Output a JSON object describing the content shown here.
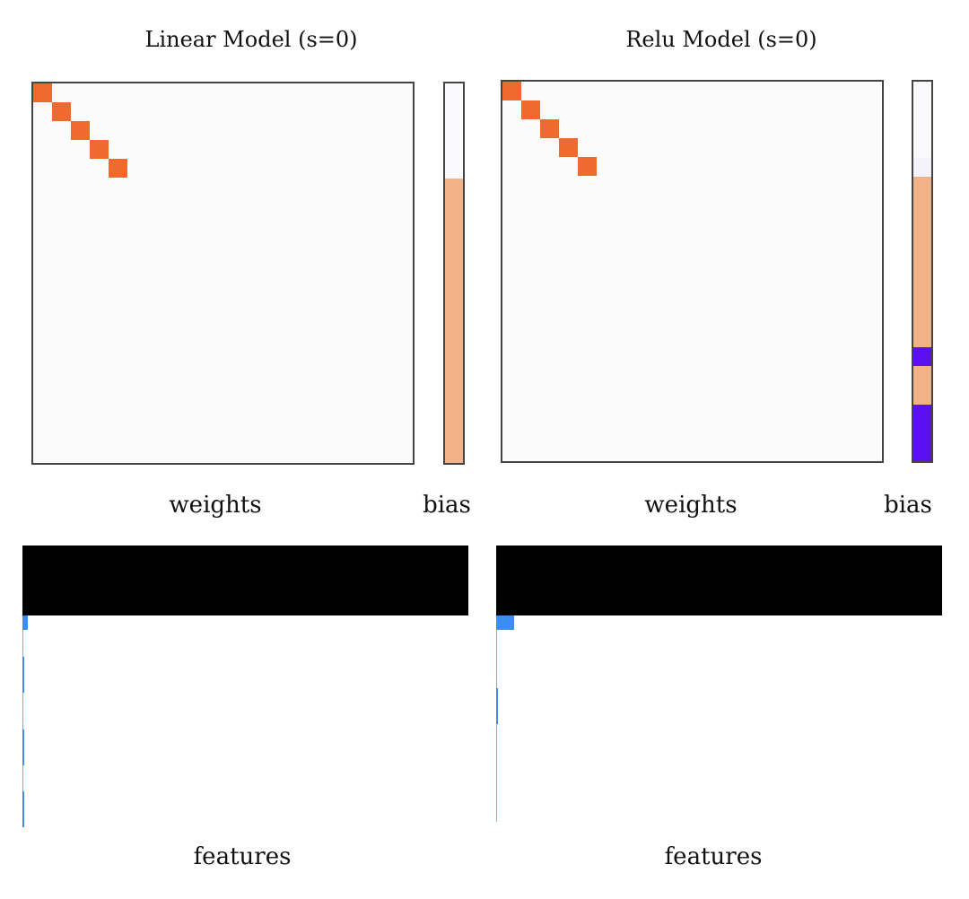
{
  "panels": [
    {
      "title": "Linear Model (s=0)",
      "weights_label": "weights",
      "bias_label": "bias",
      "features_label": "features",
      "weight_color": "#ee6a2f",
      "diag_count": 5,
      "diag_values": [
        1,
        1,
        1,
        1,
        1
      ],
      "bias_segments": [
        {
          "from": 0.0,
          "to": 0.25,
          "color": "#fafafc"
        },
        {
          "from": 0.25,
          "to": 1.0,
          "color": "#f1b288"
        }
      ],
      "features": [
        {
          "pos": 0.0,
          "value": 0.012,
          "color": "#3d8cf0"
        },
        {
          "pos": 0.2,
          "value": 0.005,
          "color": "#3d8cf0"
        },
        {
          "pos": 0.55,
          "value": 0.003,
          "color": "#3d8cf0"
        },
        {
          "pos": 0.85,
          "value": 0.003,
          "color": "#3d8cf0"
        }
      ]
    },
    {
      "title": "Relu Model (s=0)",
      "weights_label": "weights",
      "bias_label": "bias",
      "features_label": "features",
      "weight_color": "#ee6a2f",
      "diag_count": 5,
      "diag_values": [
        1,
        1,
        1,
        1,
        1
      ],
      "bias_segments": [
        {
          "from": 0.0,
          "to": 0.2,
          "color": "#fafafd"
        },
        {
          "from": 0.2,
          "to": 0.25,
          "color": "#f4f2fb"
        },
        {
          "from": 0.25,
          "to": 0.7,
          "color": "#f1b288"
        },
        {
          "from": 0.7,
          "to": 0.75,
          "color": "#5a10f0"
        },
        {
          "from": 0.75,
          "to": 0.85,
          "color": "#f1b288"
        },
        {
          "from": 0.85,
          "to": 1.0,
          "color": "#5a10f0"
        }
      ],
      "features": [
        {
          "pos": 0.0,
          "value": 0.04,
          "color": "#3d8cf0"
        },
        {
          "pos": 0.35,
          "value": 0.005,
          "color": "#3d8cf0"
        }
      ]
    }
  ]
}
